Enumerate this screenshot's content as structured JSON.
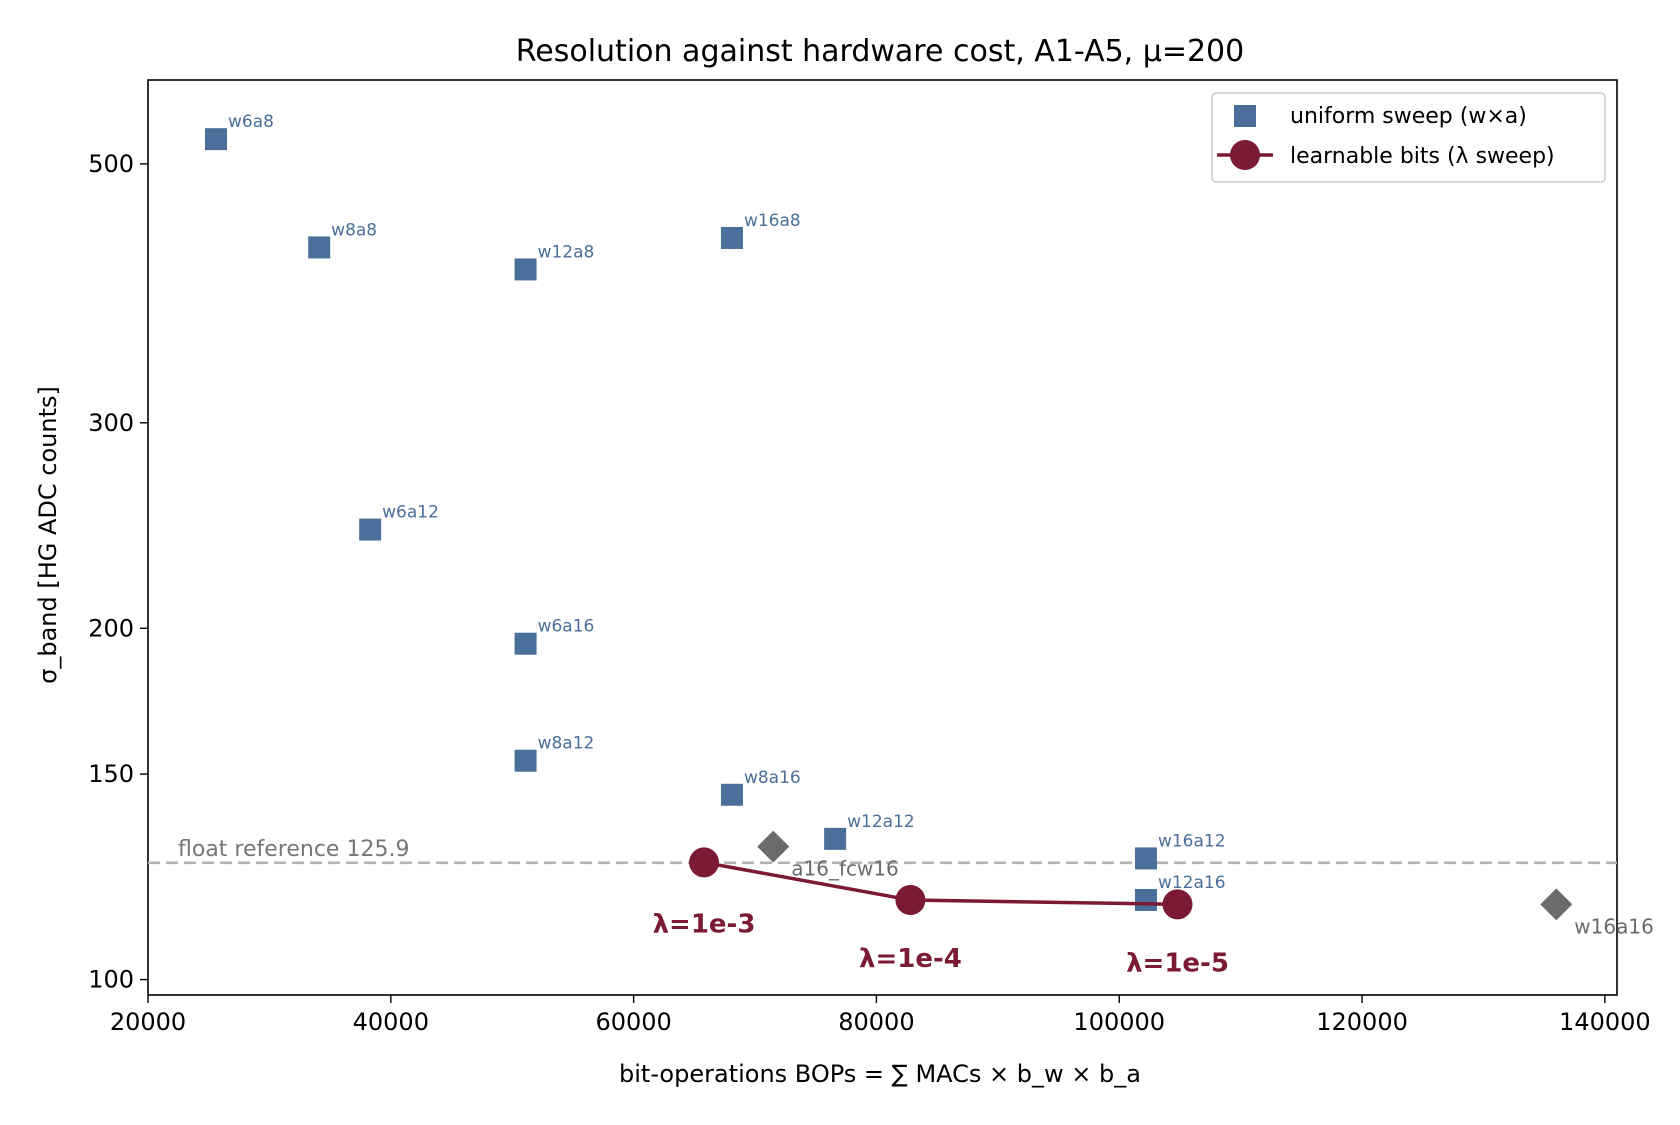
{
  "chart_data": {
    "type": "scatter",
    "title": "Resolution against hardware cost, A1-A5, μ=200",
    "xlabel": "bit-operations  BOPs = ∑ MACs × b_w × b_a",
    "ylabel": "σ_band  [HG ADC counts]",
    "xlim": [
      20000,
      141000
    ],
    "ylim": [
      97,
      590
    ],
    "yscale": "log",
    "x_ticks": [
      20000,
      40000,
      60000,
      80000,
      100000,
      120000,
      140000
    ],
    "y_ticks": [
      100,
      150,
      200,
      300,
      500
    ],
    "grid": false,
    "legend_position": "top-right",
    "colors": {
      "uniform": "#4a6f9a",
      "learnable": "#7b1a33",
      "reference": "#b3b3b3",
      "other": "#6b6b6b"
    },
    "series": [
      {
        "name": "uniform sweep (w×a)",
        "marker": "square",
        "points": [
          {
            "label": "w6a8",
            "x": 25600,
            "y": 525
          },
          {
            "label": "w8a8",
            "x": 34100,
            "y": 424
          },
          {
            "label": "w12a8",
            "x": 51100,
            "y": 406
          },
          {
            "label": "w16a8",
            "x": 68100,
            "y": 432
          },
          {
            "label": "w6a12",
            "x": 38300,
            "y": 243
          },
          {
            "label": "w6a16",
            "x": 51100,
            "y": 194
          },
          {
            "label": "w8a12",
            "x": 51100,
            "y": 154
          },
          {
            "label": "w8a16",
            "x": 68100,
            "y": 144
          },
          {
            "label": "w12a12",
            "x": 76600,
            "y": 132
          },
          {
            "label": "w16a12",
            "x": 102200,
            "y": 127
          },
          {
            "label": "w12a16",
            "x": 102200,
            "y": 117
          }
        ]
      },
      {
        "name": "learnable bits (λ sweep)",
        "marker": "circle-line",
        "points": [
          {
            "label": "λ=1e-3",
            "x": 65800,
            "y": 126
          },
          {
            "label": "λ=1e-4",
            "x": 82800,
            "y": 117
          },
          {
            "label": "λ=1e-5",
            "x": 104800,
            "y": 116
          }
        ]
      },
      {
        "marker": "diamond",
        "points": [
          {
            "label": "a16_fcw16",
            "x": 71500,
            "y": 130
          },
          {
            "label": "w16a16",
            "x": 136000,
            "y": 116
          }
        ]
      }
    ],
    "reference_line": {
      "label": "float reference  125.9",
      "y": 125.9
    }
  }
}
